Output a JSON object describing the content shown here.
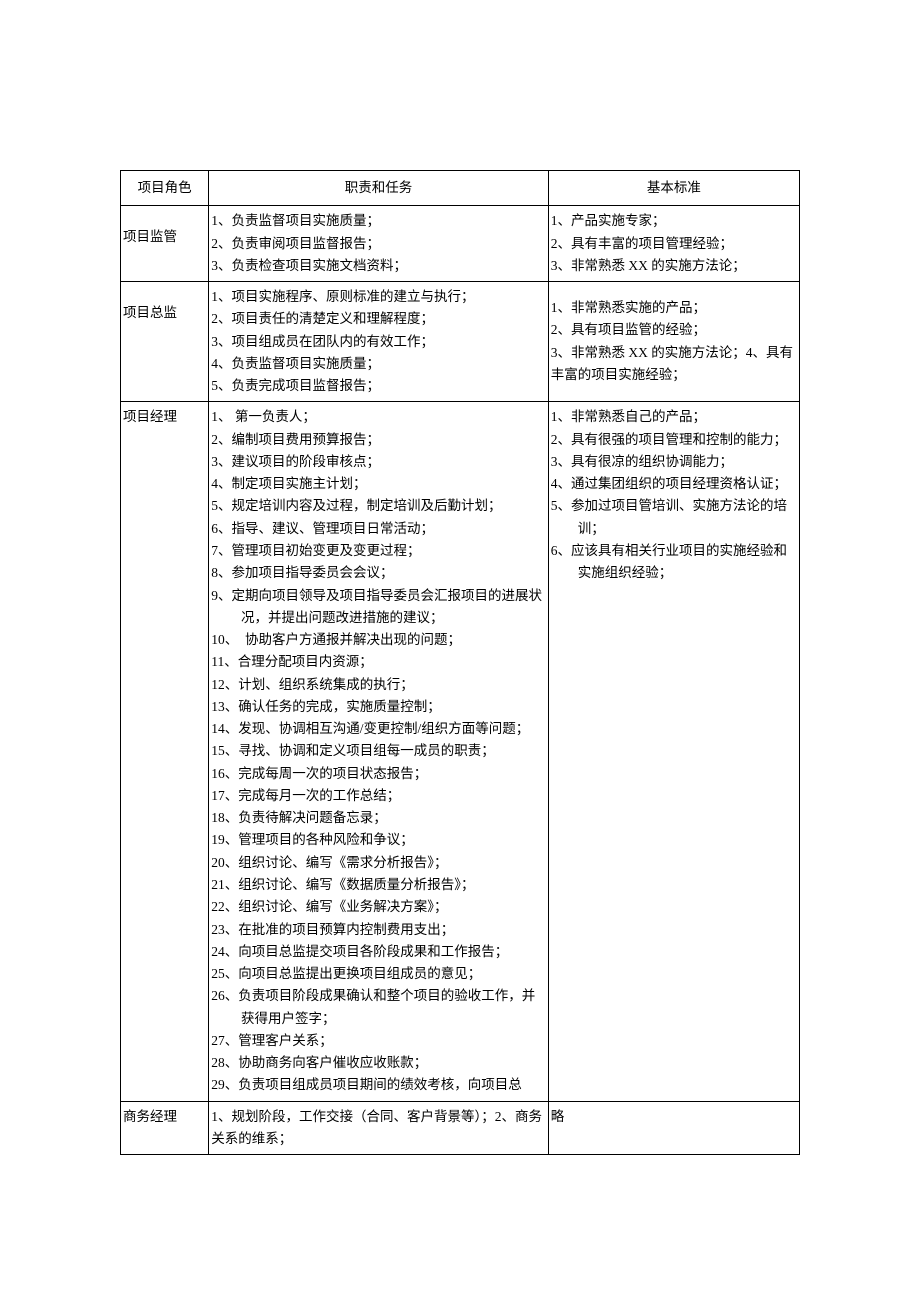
{
  "colors": {
    "background": "#ffffff",
    "text": "#000000",
    "border": "#000000"
  },
  "typography": {
    "font_family": "SimSun / 宋体",
    "font_size_pt": 10.5,
    "line_height": 1.65
  },
  "table": {
    "column_widths_pct": [
      13,
      50,
      37
    ],
    "headers": {
      "role": "项目角色",
      "duties": "职责和任务",
      "standards": "基本标准"
    },
    "rows": [
      {
        "role": "项目监管",
        "duties": [
          "1、负责监督项目实施质量；",
          "2、负责审阅项目监督报告；",
          "3、负责检查项目实施文档资料；"
        ],
        "standards": [
          "1、产品实施专家；",
          "2、具有丰富的项目管理经验；",
          "3、非常熟悉 XX 的实施方法论；"
        ]
      },
      {
        "role": "项目总监",
        "duties": [
          "1、项目实施程序、原则标准的建立与执行；",
          "2、项目责任的清楚定义和理解程度；",
          "3、项目组成员在团队内的有效工作；",
          "4、负责监督项目实施质量；",
          "5、负责完成项目监督报告；"
        ],
        "standards_run": "1、非常熟悉实施的产品；\n2、具有项目监管的经验；\n3、非常熟悉 XX 的实施方法论；4、具有丰富的项目实施经验；"
      },
      {
        "role": "项目经理",
        "duties": [
          "1、 第一负责人；",
          "2、编制项目费用预算报告；",
          "3、建议项目的阶段审核点；",
          "4、制定项目实施主计划；",
          "5、规定培训内容及过程，制定培训及后勤计划；",
          "6、指导、建议、管理项目日常活动；",
          "7、管理项目初始变更及变更过程；",
          "8、参加项目指导委员会会议；",
          "9、定期向项目领导及项目指导委员会汇报项目的进展状况，并提出问题改进措施的建议；",
          "10、　协助客户方通报并解决出现的问题；",
          "11、合理分配项目内资源；",
          "12、计划、组织系统集成的执行；",
          "13、确认任务的完成，实施质量控制；",
          "14、发现、协调相互沟通/变更控制/组织方面等问题；",
          "15、寻找、协调和定义项目组每一成员的职责；",
          "16、完成每周一次的项目状态报告；",
          "17、完成每月一次的工作总结；",
          "18、负责待解决问题备忘录；",
          "19、管理项目的各种风险和争议；",
          "20、组织讨论、编写《需求分析报告》；",
          "21、组织讨论、编写《数据质量分析报告》；",
          "22、组织讨论、编写《业务解决方案》；",
          "23、在批准的项目预算内控制费用支出；",
          "24、向项目总监提交项目各阶段成果和工作报告；",
          "25、向项目总监提出更换项目组成员的意见；",
          "26、负责项目阶段成果确认和整个项目的验收工作，并获得用户签字；",
          "27、管理客户关系；",
          "28、协助商务向客户催收应收账款；",
          "29、负责项目组成员项目期间的绩效考核，向项目总"
        ],
        "standards": [
          "1、非常熟悉自己的产品；",
          "2、具有很强的项目管理和控制的能力；",
          "3、具有很凉的组织协调能力；",
          "4、通过集团组织的项目经理资格认证；",
          "5、参加过项目管培训、实施方法论的培训；",
          "6、应该具有相关行业项目的实施经验和实施组织经验；"
        ]
      },
      {
        "role": "商务经理",
        "duties_run": "1、规划阶段，工作交接（合同、客户背景等）；2、商务关系的维系；",
        "standards_single": "略"
      }
    ]
  }
}
